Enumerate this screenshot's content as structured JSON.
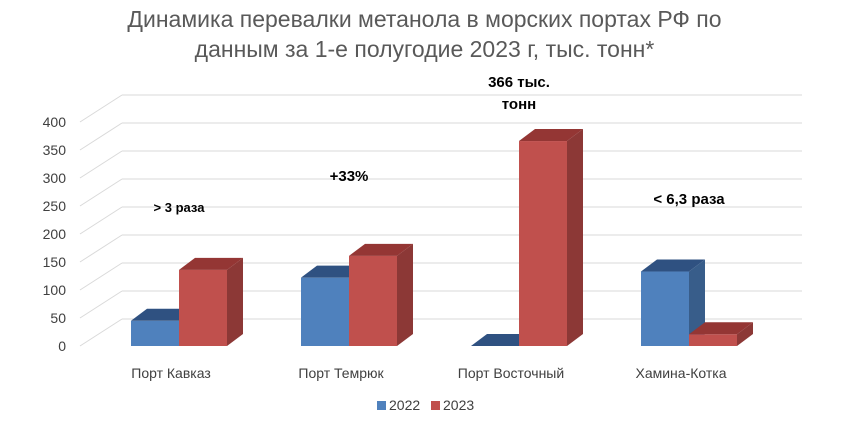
{
  "chart_data": {
    "type": "bar",
    "title_lines": [
      "Динамика перевалки метанола в морских портах РФ по",
      "данным за 1-е полугодие 2023 г, тыс. тонн*"
    ],
    "categories": [
      "Порт Кавказ",
      "Порт Темрюк",
      "Порт Восточный",
      "Хамина-Котка"
    ],
    "series": [
      {
        "name": "2022",
        "values": [
          45,
          122,
          0,
          133
        ],
        "color": "#4F81BD",
        "side": "#385D8A",
        "top": "#2F5181"
      },
      {
        "name": "2023",
        "values": [
          136,
          161,
          366,
          21
        ],
        "color": "#C0504D",
        "side": "#8C3836",
        "top": "#943634"
      }
    ],
    "ylim": [
      0,
      400
    ],
    "yticks": [
      "0",
      "50",
      "100",
      "150",
      "200",
      "250",
      "300",
      "350",
      "400"
    ],
    "annotations": [
      {
        "category_index": 0,
        "lines": [
          "> 3 раза"
        ],
        "size": "small"
      },
      {
        "category_index": 1,
        "lines": [
          "+33%"
        ],
        "size": "large"
      },
      {
        "category_index": 2,
        "lines": [
          "366 тыс.",
          "тонн"
        ],
        "size": "large"
      },
      {
        "category_index": 3,
        "lines": [
          "< 6,3 раза"
        ],
        "size": "large"
      }
    ],
    "legend_position": "bottom",
    "grid": true,
    "style": "3d-clustered-column"
  }
}
